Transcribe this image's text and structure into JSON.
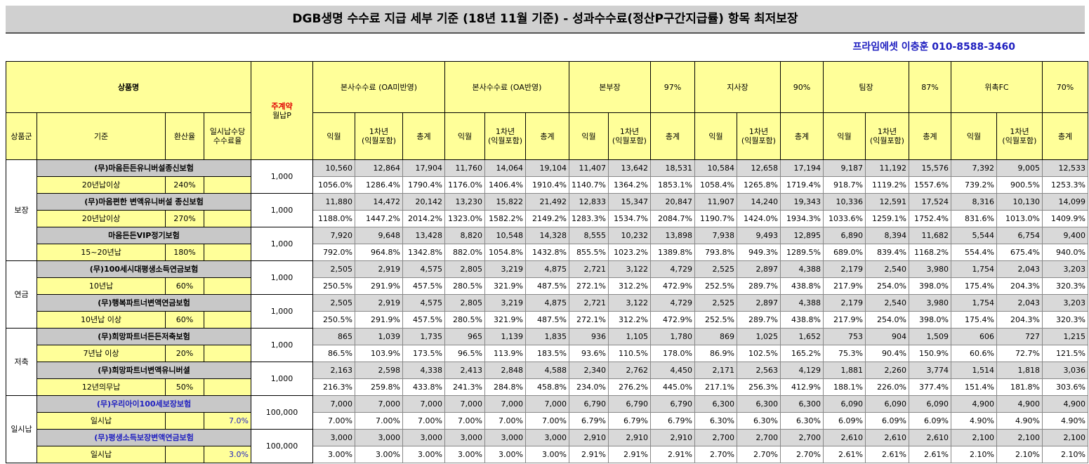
{
  "header": {
    "title": "DGB생명 수수료 지급 세부 기준 (18년 11월 기준) - 성과수수료(정산P구간지급률) 항목 최저보장",
    "contact": "프라임에셋 이충훈 010-8588-3460"
  },
  "table": {
    "head": {
      "product_name": "상품명",
      "main_contract": "주계약",
      "monthly_p": "월납P",
      "groups": [
        {
          "name": "본사수수료 (OA미반영)"
        },
        {
          "name": "본사수수료 (OA반영)"
        },
        {
          "name": "본부장",
          "rate": "97%"
        },
        {
          "name": "지사장",
          "rate": "90%"
        },
        {
          "name": "팀장",
          "rate": "87%"
        },
        {
          "name": "위촉FC",
          "rate": "70%"
        }
      ],
      "sub": [
        "상품군",
        "기준",
        "환산율",
        "일시납수당\n수수료율"
      ],
      "metrics": [
        "익월",
        "1차년\n(익월포함)",
        "총계"
      ]
    },
    "sections": [
      {
        "group": "보장",
        "products": [
          {
            "name": "(무)마음든든유니버설종신보험",
            "premium": "1,000",
            "basis": "20년납이상",
            "conversion": "240%",
            "amounts": [
              "10,560",
              "12,864",
              "17,904",
              "11,760",
              "14,064",
              "19,104",
              "11,407",
              "13,642",
              "18,531",
              "10,584",
              "12,658",
              "17,194",
              "9,187",
              "11,192",
              "15,576",
              "7,392",
              "9,005",
              "12,533"
            ],
            "rates": [
              "1056.0%",
              "1286.4%",
              "1790.4%",
              "1176.0%",
              "1406.4%",
              "1910.4%",
              "1140.7%",
              "1364.2%",
              "1853.1%",
              "1058.4%",
              "1265.8%",
              "1719.4%",
              "918.7%",
              "1119.2%",
              "1557.6%",
              "739.2%",
              "900.5%",
              "1253.3%"
            ]
          },
          {
            "name": "(무)마음편한 변액유니버설 종신보험",
            "premium": "1,000",
            "basis": "20년납이상",
            "conversion": "270%",
            "amounts": [
              "11,880",
              "14,472",
              "20,142",
              "13,230",
              "15,822",
              "21,492",
              "12,833",
              "15,347",
              "20,847",
              "11,907",
              "14,240",
              "19,343",
              "10,336",
              "12,591",
              "17,524",
              "8,316",
              "10,130",
              "14,099"
            ],
            "rates": [
              "1188.0%",
              "1447.2%",
              "2014.2%",
              "1323.0%",
              "1582.2%",
              "2149.2%",
              "1283.3%",
              "1534.7%",
              "2084.7%",
              "1190.7%",
              "1424.0%",
              "1934.3%",
              "1033.6%",
              "1259.1%",
              "1752.4%",
              "831.6%",
              "1013.0%",
              "1409.9%"
            ]
          },
          {
            "name": "마음든든VIP정기보험",
            "premium": "1,000",
            "basis": "15~20년납",
            "conversion": "180%",
            "amounts": [
              "7,920",
              "9,648",
              "13,428",
              "8,820",
              "10,548",
              "14,328",
              "8,555",
              "10,232",
              "13,898",
              "7,938",
              "9,493",
              "12,895",
              "6,890",
              "8,394",
              "11,682",
              "5,544",
              "6,754",
              "9,400"
            ],
            "rates": [
              "792.0%",
              "964.8%",
              "1342.8%",
              "882.0%",
              "1054.8%",
              "1432.8%",
              "855.5%",
              "1023.2%",
              "1389.8%",
              "793.8%",
              "949.3%",
              "1289.5%",
              "689.0%",
              "839.4%",
              "1168.2%",
              "554.4%",
              "675.4%",
              "940.0%"
            ]
          }
        ]
      },
      {
        "group": "연금",
        "products": [
          {
            "name": "(무)100세시대평생소득연금보험",
            "premium": "1,000",
            "basis": "10년납",
            "conversion": "60%",
            "amounts": [
              "2,505",
              "2,919",
              "4,575",
              "2,805",
              "3,219",
              "4,875",
              "2,721",
              "3,122",
              "4,729",
              "2,525",
              "2,897",
              "4,388",
              "2,179",
              "2,540",
              "3,980",
              "1,754",
              "2,043",
              "3,203"
            ],
            "rates": [
              "250.5%",
              "291.9%",
              "457.5%",
              "280.5%",
              "321.9%",
              "487.5%",
              "272.1%",
              "312.2%",
              "472.9%",
              "252.5%",
              "289.7%",
              "438.8%",
              "217.9%",
              "254.0%",
              "398.0%",
              "175.4%",
              "204.3%",
              "320.3%"
            ]
          },
          {
            "name": "(무)행복파트너변액연금보험",
            "premium": "1,000",
            "basis": "10년납 이상",
            "conversion": "60%",
            "amounts": [
              "2,505",
              "2,919",
              "4,575",
              "2,805",
              "3,219",
              "4,875",
              "2,721",
              "3,122",
              "4,729",
              "2,525",
              "2,897",
              "4,388",
              "2,179",
              "2,540",
              "3,980",
              "1,754",
              "2,043",
              "3,203"
            ],
            "rates": [
              "250.5%",
              "291.9%",
              "457.5%",
              "280.5%",
              "321.9%",
              "487.5%",
              "272.1%",
              "312.2%",
              "472.9%",
              "252.5%",
              "289.7%",
              "438.8%",
              "217.9%",
              "254.0%",
              "398.0%",
              "175.4%",
              "204.3%",
              "320.3%"
            ]
          }
        ]
      },
      {
        "group": "저축",
        "products": [
          {
            "name": "(무)희망파트너든든저축보험",
            "premium": "1,000",
            "basis": "7년납 이상",
            "conversion": "20%",
            "amounts": [
              "865",
              "1,039",
              "1,735",
              "965",
              "1,139",
              "1,835",
              "936",
              "1,105",
              "1,780",
              "869",
              "1,025",
              "1,652",
              "753",
              "904",
              "1,509",
              "606",
              "727",
              "1,215"
            ],
            "rates": [
              "86.5%",
              "103.9%",
              "173.5%",
              "96.5%",
              "113.9%",
              "183.5%",
              "93.6%",
              "110.5%",
              "178.0%",
              "86.9%",
              "102.5%",
              "165.2%",
              "75.3%",
              "90.4%",
              "150.9%",
              "60.6%",
              "72.7%",
              "121.5%"
            ]
          },
          {
            "name": "(무)희망파트너변액유니버셜",
            "premium": "1,000",
            "basis": "12년의무납",
            "conversion": "50%",
            "amounts": [
              "2,163",
              "2,598",
              "4,338",
              "2,413",
              "2,848",
              "4,588",
              "2,340",
              "2,762",
              "4,450",
              "2,171",
              "2,563",
              "4,129",
              "1,881",
              "2,260",
              "3,774",
              "1,514",
              "1,818",
              "3,036"
            ],
            "rates": [
              "216.3%",
              "259.8%",
              "433.8%",
              "241.3%",
              "284.8%",
              "458.8%",
              "234.0%",
              "276.2%",
              "445.0%",
              "217.1%",
              "256.3%",
              "412.9%",
              "188.1%",
              "226.0%",
              "377.4%",
              "151.4%",
              "181.8%",
              "303.6%"
            ]
          }
        ]
      },
      {
        "group": "일시납",
        "products": [
          {
            "name": "(무)우리아이100세보장보험",
            "premium": "100,000",
            "basis": "일시납",
            "lump_rate": "7.0%",
            "amounts": [
              "7,000",
              "7,000",
              "7,000",
              "7,000",
              "7,000",
              "7,000",
              "6,790",
              "6,790",
              "6,790",
              "6,300",
              "6,300",
              "6,300",
              "6,090",
              "6,090",
              "6,090",
              "4,900",
              "4,900",
              "4,900"
            ],
            "rates": [
              "7.00%",
              "7.00%",
              "7.00%",
              "7.00%",
              "7.00%",
              "7.00%",
              "6.79%",
              "6.79%",
              "6.79%",
              "6.30%",
              "6.30%",
              "6.30%",
              "6.09%",
              "6.09%",
              "6.09%",
              "4.90%",
              "4.90%",
              "4.90%"
            ]
          },
          {
            "name": "(무)평생소득보장변액연금보험",
            "premium": "100,000",
            "basis": "일시납",
            "lump_rate": "3.0%",
            "amounts": [
              "3,000",
              "3,000",
              "3,000",
              "3,000",
              "3,000",
              "3,000",
              "2,910",
              "2,910",
              "2,910",
              "2,700",
              "2,700",
              "2,700",
              "2,610",
              "2,610",
              "2,610",
              "2,100",
              "2,100",
              "2,100"
            ],
            "rates": [
              "3.00%",
              "3.00%",
              "3.00%",
              "3.00%",
              "3.00%",
              "3.00%",
              "2.91%",
              "2.91%",
              "2.91%",
              "2.70%",
              "2.70%",
              "2.70%",
              "2.61%",
              "2.61%",
              "2.61%",
              "2.10%",
              "2.10%",
              "2.10%"
            ]
          }
        ]
      }
    ]
  }
}
